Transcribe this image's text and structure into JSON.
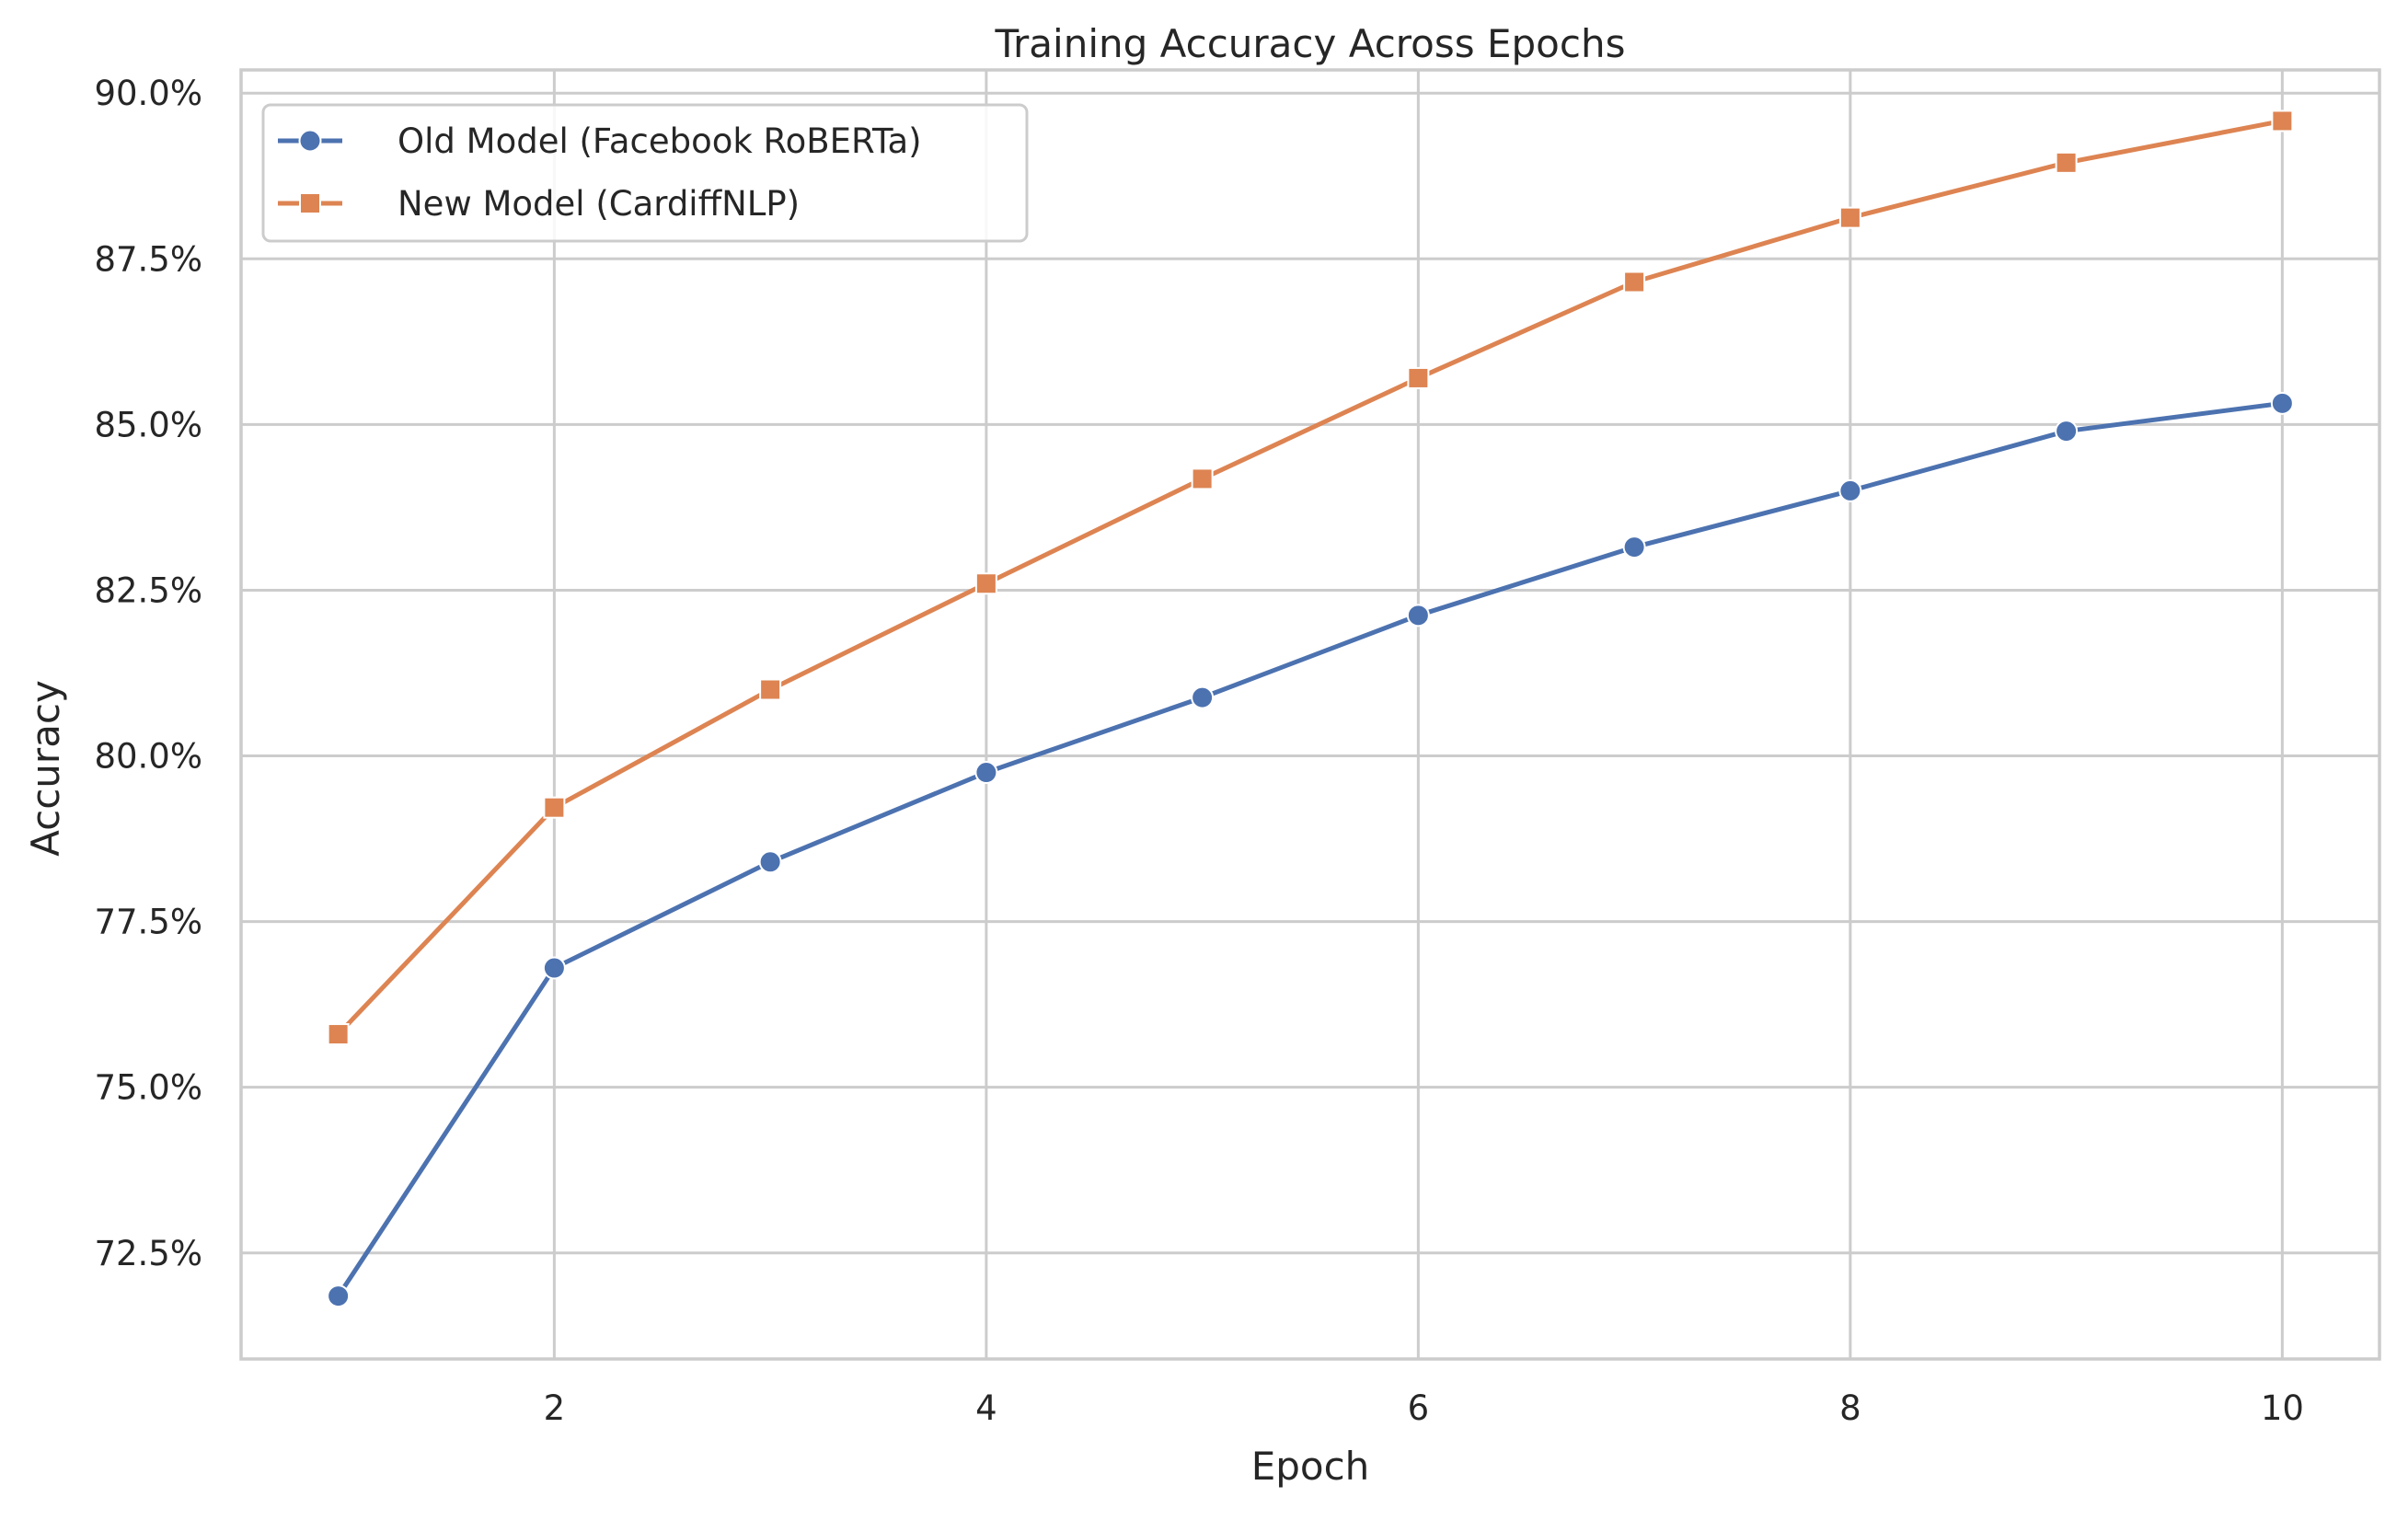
{
  "chart_data": {
    "type": "line",
    "title": "Training Accuracy Across Epochs",
    "xlabel": "Epoch",
    "ylabel": "Accuracy",
    "xlim": [
      0.55,
      10.45
    ],
    "ylim": [
      70.9,
      90.35
    ],
    "x_ticks": [
      2,
      4,
      6,
      8,
      10
    ],
    "x_tick_labels": [
      "2",
      "4",
      "6",
      "8",
      "10"
    ],
    "y_ticks": [
      72.5,
      75.0,
      77.5,
      80.0,
      82.5,
      85.0,
      87.5,
      90.0
    ],
    "y_tick_labels": [
      "72.5%",
      "75.0%",
      "77.5%",
      "80.0%",
      "82.5%",
      "85.0%",
      "87.5%",
      "90.0%"
    ],
    "grid": true,
    "legend_position": "top-left",
    "x": [
      1,
      2,
      3,
      4,
      5,
      6,
      7,
      8,
      9,
      10
    ],
    "series": [
      {
        "name": "Old Model (Facebook RoBERTa)",
        "color": "#4c72b0",
        "marker": "circle",
        "values": [
          71.85,
          76.8,
          78.4,
          79.75,
          80.88,
          82.12,
          83.15,
          84.0,
          84.9,
          85.32
        ]
      },
      {
        "name": "New Model (CardiffNLP)",
        "color": "#dd8452",
        "marker": "square",
        "values": [
          75.8,
          79.22,
          81.0,
          82.6,
          84.18,
          85.7,
          87.15,
          88.12,
          88.95,
          89.58
        ]
      }
    ]
  }
}
